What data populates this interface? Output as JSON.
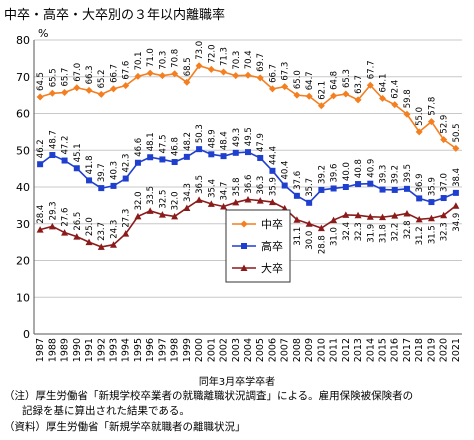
{
  "title": "中卒・高卒・大卒別の３年以内離職率",
  "notes": {
    "line1": "（注）厚生労働省「新規学校卒業者の就職離職状況調査」による。雇用保険被保険者の",
    "line2": "記録を基に算出された結果である。",
    "line3": "（資料）厚生労働省「新規学卒就職者の離職状況」"
  },
  "chart_data": {
    "type": "line",
    "title": "中卒・高卒・大卒別の３年以内離職率",
    "xlabel": "同年3月卒学卒者",
    "ylabel": "",
    "unit_label": "%",
    "ylim": [
      0,
      80
    ],
    "yticks": [
      0,
      10,
      20,
      30,
      40,
      50,
      60,
      70,
      80
    ],
    "grid": true,
    "legend": "center-right",
    "x": [
      "1987",
      "1988",
      "1989",
      "1990",
      "1991",
      "1992",
      "1993",
      "1994",
      "1995",
      "1996",
      "1997",
      "1998",
      "1999",
      "2000",
      "2001",
      "2002",
      "2003",
      "2004",
      "2005",
      "2006",
      "2007",
      "2008",
      "2009",
      "2010",
      "2011",
      "2012",
      "2013",
      "2014",
      "2015",
      "2016",
      "2017",
      "2018",
      "2019",
      "2020",
      "2021"
    ],
    "series": [
      {
        "name": "中卒",
        "color": "#f47f20",
        "marker": "diamond",
        "values": [
          64.5,
          65.5,
          65.7,
          67.0,
          66.3,
          65.2,
          66.7,
          67.6,
          70.1,
          71.0,
          70.3,
          70.8,
          68.5,
          73.0,
          72.0,
          71.3,
          70.3,
          70.4,
          69.7,
          66.7,
          67.3,
          65.0,
          64.7,
          62.1,
          64.8,
          65.3,
          63.7,
          67.7,
          64.1,
          62.4,
          59.8,
          55.0,
          57.8,
          52.9,
          50.5
        ]
      },
      {
        "name": "高卒",
        "color": "#1f3fcf",
        "marker": "square",
        "values": [
          46.2,
          48.7,
          47.2,
          45.1,
          41.8,
          39.7,
          40.3,
          42.3,
          46.6,
          48.1,
          47.5,
          46.8,
          48.2,
          50.3,
          48.9,
          48.4,
          49.3,
          49.5,
          47.9,
          44.4,
          40.4,
          37.6,
          35.7,
          39.2,
          39.6,
          40.0,
          40.8,
          40.9,
          39.3,
          39.2,
          39.5,
          36.9,
          35.9,
          37.0,
          38.4
        ]
      },
      {
        "name": "大卒",
        "color": "#8b1a1a",
        "marker": "triangle",
        "values": [
          28.4,
          29.3,
          27.6,
          26.5,
          25.0,
          23.7,
          24.3,
          27.3,
          32.0,
          33.5,
          32.5,
          32.0,
          34.3,
          36.5,
          35.4,
          34.7,
          35.8,
          36.6,
          36.3,
          35.9,
          34.2,
          31.1,
          30.0,
          28.8,
          31.0,
          32.4,
          32.3,
          31.9,
          31.8,
          32.2,
          32.8,
          31.2,
          31.5,
          32.3,
          34.9
        ]
      }
    ]
  }
}
